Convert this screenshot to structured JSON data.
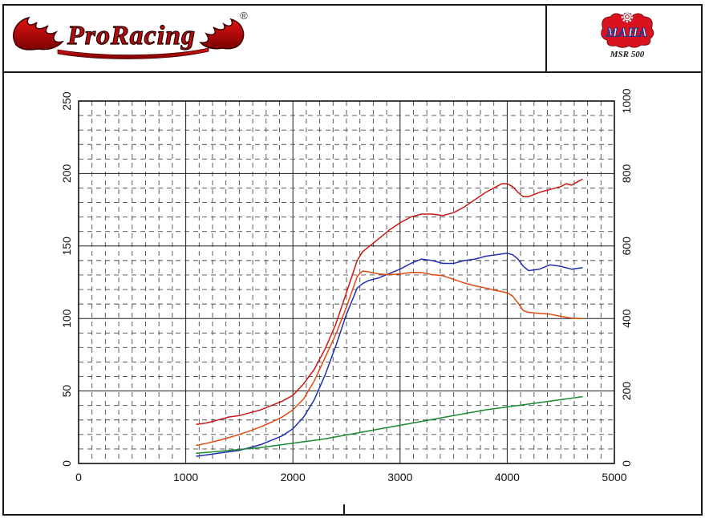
{
  "header": {
    "brand": "ProRacing",
    "registered": "®",
    "maha": {
      "name": "MAHA",
      "model": "MSR 500",
      "color": "#d8121f"
    }
  },
  "chart_data": {
    "type": "line",
    "title": "",
    "xlabel": "",
    "ylabel_left": "",
    "ylabel_right": "",
    "grid": {
      "style": "dashed-minor-solid-major"
    },
    "x_axis": {
      "min": 0,
      "max": 5000,
      "major_step": 1000,
      "minor_step": 125,
      "ticks": [
        0,
        1000,
        2000,
        3000,
        4000,
        5000
      ]
    },
    "y_axis_left": {
      "min": 0,
      "max": 250,
      "major_step": 50,
      "minor_step": 10,
      "ticks": [
        0,
        50,
        100,
        150,
        200,
        250
      ],
      "color": "#111111"
    },
    "y_axis_right": {
      "min": 0,
      "max": 1000,
      "major_step": 200,
      "ticks": [
        0,
        200,
        400,
        600,
        800,
        1000
      ],
      "color": "#cc3300"
    },
    "series": [
      {
        "name": "red-upper-curve",
        "axis": "left",
        "color": "#cc1712",
        "points": [
          [
            1100,
            27
          ],
          [
            1200,
            28
          ],
          [
            1300,
            30
          ],
          [
            1400,
            32
          ],
          [
            1500,
            33
          ],
          [
            1600,
            35
          ],
          [
            1700,
            37
          ],
          [
            1800,
            40
          ],
          [
            1900,
            43
          ],
          [
            2000,
            47
          ],
          [
            2100,
            55
          ],
          [
            2200,
            65
          ],
          [
            2300,
            79
          ],
          [
            2400,
            96
          ],
          [
            2500,
            118
          ],
          [
            2600,
            140
          ],
          [
            2650,
            146
          ],
          [
            2700,
            149
          ],
          [
            2800,
            155
          ],
          [
            2900,
            161
          ],
          [
            3000,
            166
          ],
          [
            3100,
            170
          ],
          [
            3200,
            172
          ],
          [
            3300,
            172
          ],
          [
            3400,
            171
          ],
          [
            3500,
            173
          ],
          [
            3600,
            177
          ],
          [
            3700,
            182
          ],
          [
            3800,
            187
          ],
          [
            3900,
            191
          ],
          [
            3950,
            193
          ],
          [
            4000,
            193
          ],
          [
            4050,
            191
          ],
          [
            4100,
            187
          ],
          [
            4150,
            184
          ],
          [
            4200,
            184
          ],
          [
            4300,
            187
          ],
          [
            4400,
            189
          ],
          [
            4500,
            191
          ],
          [
            4550,
            193
          ],
          [
            4600,
            192
          ],
          [
            4650,
            194
          ],
          [
            4700,
            196
          ]
        ]
      },
      {
        "name": "blue-curve",
        "axis": "left",
        "color": "#2030b0",
        "points": [
          [
            1100,
            5
          ],
          [
            1200,
            6
          ],
          [
            1300,
            7
          ],
          [
            1400,
            8
          ],
          [
            1500,
            9
          ],
          [
            1600,
            11
          ],
          [
            1700,
            13
          ],
          [
            1800,
            16
          ],
          [
            1900,
            19
          ],
          [
            2000,
            24
          ],
          [
            2100,
            32
          ],
          [
            2200,
            44
          ],
          [
            2300,
            61
          ],
          [
            2400,
            81
          ],
          [
            2500,
            103
          ],
          [
            2600,
            121
          ],
          [
            2650,
            124
          ],
          [
            2700,
            126
          ],
          [
            2800,
            128
          ],
          [
            2900,
            131
          ],
          [
            3000,
            134
          ],
          [
            3100,
            138
          ],
          [
            3200,
            141
          ],
          [
            3300,
            140
          ],
          [
            3400,
            138
          ],
          [
            3500,
            138
          ],
          [
            3600,
            140
          ],
          [
            3700,
            141
          ],
          [
            3800,
            143
          ],
          [
            3900,
            144
          ],
          [
            4000,
            145
          ],
          [
            4050,
            144
          ],
          [
            4100,
            141
          ],
          [
            4150,
            136
          ],
          [
            4200,
            133
          ],
          [
            4300,
            134
          ],
          [
            4400,
            137
          ],
          [
            4500,
            136
          ],
          [
            4600,
            134
          ],
          [
            4700,
            135
          ]
        ]
      },
      {
        "name": "orange-curve",
        "axis": "right",
        "color": "#e04a10",
        "points": [
          [
            1100,
            50
          ],
          [
            1200,
            56
          ],
          [
            1300,
            63
          ],
          [
            1400,
            71
          ],
          [
            1500,
            80
          ],
          [
            1600,
            90
          ],
          [
            1700,
            101
          ],
          [
            1800,
            114
          ],
          [
            1900,
            128
          ],
          [
            2000,
            148
          ],
          [
            2100,
            178
          ],
          [
            2200,
            228
          ],
          [
            2300,
            292
          ],
          [
            2400,
            356
          ],
          [
            2500,
            432
          ],
          [
            2600,
            516
          ],
          [
            2650,
            531
          ],
          [
            2700,
            529
          ],
          [
            2800,
            523
          ],
          [
            2900,
            521
          ],
          [
            3000,
            523
          ],
          [
            3100,
            527
          ],
          [
            3200,
            527
          ],
          [
            3300,
            521
          ],
          [
            3400,
            518
          ],
          [
            3500,
            508
          ],
          [
            3600,
            498
          ],
          [
            3700,
            490
          ],
          [
            3800,
            484
          ],
          [
            3900,
            477
          ],
          [
            4000,
            471
          ],
          [
            4050,
            462
          ],
          [
            4100,
            443
          ],
          [
            4150,
            422
          ],
          [
            4200,
            417
          ],
          [
            4300,
            414
          ],
          [
            4400,
            412
          ],
          [
            4500,
            406
          ],
          [
            4600,
            401
          ],
          [
            4700,
            400
          ]
        ]
      },
      {
        "name": "green-curve",
        "axis": "left",
        "color": "#1c8a33",
        "points": [
          [
            1100,
            7
          ],
          [
            1400,
            9
          ],
          [
            1700,
            11
          ],
          [
            2000,
            14
          ],
          [
            2300,
            17
          ],
          [
            2600,
            21
          ],
          [
            2900,
            25
          ],
          [
            3200,
            29
          ],
          [
            3500,
            33
          ],
          [
            3800,
            37
          ],
          [
            4100,
            40
          ],
          [
            4400,
            43
          ],
          [
            4700,
            46
          ]
        ]
      }
    ]
  }
}
